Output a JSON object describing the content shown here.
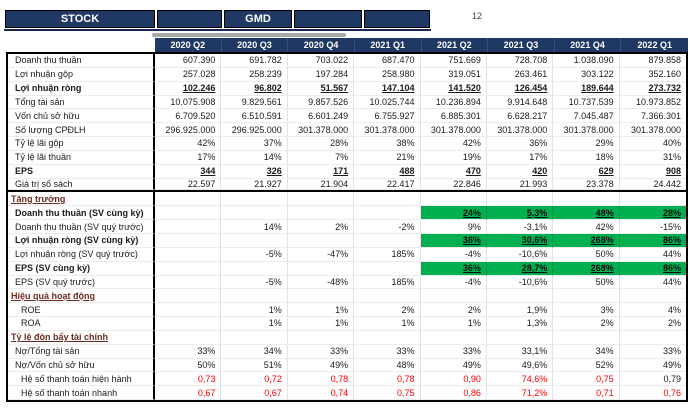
{
  "top_bar": {
    "stock_label": "STOCK",
    "ticker": "GMD",
    "note": "12"
  },
  "colors": {
    "navy": "#1f3864",
    "green_highlight": "#00b050",
    "red_value": "#ff0000",
    "section_text": "#6b2c1e"
  },
  "table": {
    "columns": [
      "2020 Q2",
      "2020 Q3",
      "2020 Q4",
      "2021 Q1",
      "2021 Q2",
      "2021 Q3",
      "2021 Q4",
      "2022 Q1"
    ],
    "rows": [
      {
        "label": "Doanh thu thuần",
        "type": "data",
        "indent": 1,
        "values": [
          "607.390",
          "691.782",
          "703.022",
          "687.470",
          "751.669",
          "728.708",
          "1.038.090",
          "879.858"
        ]
      },
      {
        "label": "Lợi nhuận gộp",
        "type": "data",
        "indent": 1,
        "values": [
          "257.028",
          "258.239",
          "197.284",
          "258.980",
          "319.051",
          "263.461",
          "303.122",
          "352.160"
        ]
      },
      {
        "label": "Lợi nhuận ròng",
        "type": "data",
        "indent": 1,
        "label_bold": true,
        "value_class": "boldline",
        "values": [
          "102.246",
          "96.802",
          "51.567",
          "147.104",
          "141.520",
          "126.454",
          "189.644",
          "273.732"
        ]
      },
      {
        "label": "Tổng tài sản",
        "type": "data",
        "indent": 1,
        "values": [
          "10.075.908",
          "9.829.561",
          "9.857.526",
          "10.025.744",
          "10.236.894",
          "9.914.648",
          "10.737.539",
          "10.973.852"
        ]
      },
      {
        "label": "Vốn chủ sở hữu",
        "type": "data",
        "indent": 1,
        "values": [
          "6.709.520",
          "6.510.591",
          "6.601.249",
          "6.755.927",
          "6.885.301",
          "6.628.217",
          "7.045.487",
          "7.366.301"
        ]
      },
      {
        "label": "Số lượng CPĐLH",
        "type": "data",
        "indent": 1,
        "values": [
          "296.925.000",
          "296.925.000",
          "301.378.000",
          "301.378.000",
          "301.378.000",
          "301.378.000",
          "301.378.000",
          "301.378.000"
        ]
      },
      {
        "label": "Tỷ lệ lãi gộp",
        "type": "data",
        "indent": 1,
        "values": [
          "42%",
          "37%",
          "28%",
          "38%",
          "42%",
          "36%",
          "29%",
          "40%"
        ]
      },
      {
        "label": "Tỷ lệ lãi thuần",
        "type": "data",
        "indent": 1,
        "values": [
          "17%",
          "14%",
          "7%",
          "21%",
          "19%",
          "17%",
          "18%",
          "31%"
        ]
      },
      {
        "label": "EPS",
        "type": "data",
        "indent": 1,
        "label_bold": true,
        "value_class": "boldline",
        "values": [
          "344",
          "326",
          "171",
          "488",
          "470",
          "420",
          "629",
          "908"
        ]
      },
      {
        "label": "Giá trị số sách",
        "type": "data",
        "indent": 1,
        "thick_bottom": true,
        "values": [
          "22.597",
          "21.927",
          "21.904",
          "22.417",
          "22.846",
          "21.993",
          "23.378",
          "24.442"
        ]
      },
      {
        "label": "Tăng trưởng",
        "type": "section",
        "values": [
          "",
          "",
          "",
          "",
          "",
          "",
          "",
          ""
        ]
      },
      {
        "label": "Doanh thu thuần (SV cùng kỳ)",
        "type": "data",
        "indent": 1,
        "label_bold": true,
        "green": true,
        "values": [
          "",
          "",
          "",
          "",
          "24%",
          "5,3%",
          "48%",
          "28%"
        ]
      },
      {
        "label": "Doanh thu thuần (SV quý trước)",
        "type": "data",
        "indent": 1,
        "values": [
          "",
          "14%",
          "2%",
          "-2%",
          "9%",
          "-3,1%",
          "42%",
          "-15%"
        ]
      },
      {
        "label": "Lợi nhuận ròng (SV cùng kỳ)",
        "type": "data",
        "indent": 1,
        "label_bold": true,
        "green": true,
        "values": [
          "",
          "",
          "",
          "",
          "38%",
          "30,6%",
          "268%",
          "86%"
        ]
      },
      {
        "label": "Lợi nhuận ròng (SV quý trước)",
        "type": "data",
        "indent": 1,
        "values": [
          "",
          "-5%",
          "-47%",
          "185%",
          "-4%",
          "-10,6%",
          "50%",
          "44%"
        ]
      },
      {
        "label": "EPS (SV cùng kỳ)",
        "type": "data",
        "indent": 1,
        "label_bold": true,
        "green": true,
        "values": [
          "",
          "",
          "",
          "",
          "36%",
          "28,7%",
          "268%",
          "86%"
        ]
      },
      {
        "label": "EPS (SV quý trước)",
        "type": "data",
        "indent": 1,
        "values": [
          "",
          "-5%",
          "-48%",
          "185%",
          "-4%",
          "-10,6%",
          "50%",
          "44%"
        ]
      },
      {
        "label": "Hiệu quả hoạt động",
        "type": "section",
        "values": [
          "",
          "",
          "",
          "",
          "",
          "",
          "",
          ""
        ]
      },
      {
        "label": "ROE",
        "type": "data",
        "indent": 2,
        "values": [
          "",
          "1%",
          "1%",
          "2%",
          "2%",
          "1,9%",
          "3%",
          "4%"
        ]
      },
      {
        "label": "ROA",
        "type": "data",
        "indent": 2,
        "values": [
          "",
          "1%",
          "1%",
          "1%",
          "1%",
          "1,3%",
          "2%",
          "2%"
        ]
      },
      {
        "label": "Tỷ lệ đòn bẩy tài chính",
        "type": "section",
        "values": [
          "",
          "",
          "",
          "",
          "",
          "",
          "",
          ""
        ]
      },
      {
        "label": "Nợ/Tổng tài sản",
        "type": "data",
        "indent": 1,
        "values": [
          "33%",
          "34%",
          "33%",
          "33%",
          "33%",
          "33,1%",
          "34%",
          "33%"
        ]
      },
      {
        "label": "Nợ/Vốn chủ sở hữu",
        "type": "data",
        "indent": 1,
        "values": [
          "50%",
          "51%",
          "49%",
          "48%",
          "49%",
          "49,6%",
          "52%",
          "49%"
        ]
      },
      {
        "label": "Hệ số thanh toán hiện hành",
        "type": "data",
        "indent": 2,
        "value_class": "red",
        "black_cells": [
          7
        ],
        "values": [
          "0,73",
          "0,72",
          "0,78",
          "0,78",
          "0,90",
          "74,6%",
          "0,75",
          "0,79"
        ]
      },
      {
        "label": "Hệ số thanh toán nhanh",
        "type": "data",
        "indent": 2,
        "value_class": "red",
        "values": [
          "0,67",
          "0,67",
          "0,74",
          "0,75",
          "0,86",
          "71,2%",
          "0,71",
          "0,76"
        ]
      }
    ]
  }
}
